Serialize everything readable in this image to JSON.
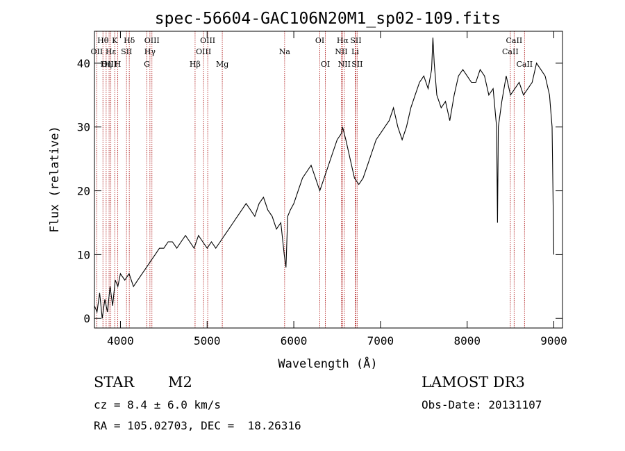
{
  "chart_data": {
    "type": "line",
    "title": "spec-56604-GAC106N20M1_sp02-109.fits",
    "xlabel": "Wavelength (Å)",
    "ylabel": "Flux (relative)",
    "xlim": [
      3700,
      9100
    ],
    "ylim": [
      -1.5,
      45
    ],
    "xticks": [
      4000,
      5000,
      6000,
      7000,
      8000,
      9000
    ],
    "yticks": [
      0,
      10,
      20,
      30,
      40
    ],
    "line_color": "#000000",
    "marker_color": "#b22222",
    "series": [
      {
        "name": "spectrum",
        "x": [
          3700,
          3730,
          3760,
          3790,
          3820,
          3850,
          3880,
          3910,
          3940,
          3970,
          4000,
          4050,
          4100,
          4150,
          4200,
          4250,
          4300,
          4350,
          4400,
          4450,
          4500,
          4550,
          4600,
          4650,
          4700,
          4750,
          4800,
          4850,
          4900,
          4950,
          5000,
          5050,
          5100,
          5150,
          5200,
          5250,
          5300,
          5350,
          5400,
          5450,
          5500,
          5550,
          5600,
          5650,
          5700,
          5750,
          5800,
          5850,
          5890,
          5910,
          5930,
          5960,
          6000,
          6050,
          6100,
          6150,
          6200,
          6250,
          6300,
          6350,
          6400,
          6450,
          6500,
          6550,
          6563,
          6600,
          6650,
          6700,
          6750,
          6800,
          6850,
          6900,
          6950,
          7000,
          7050,
          7100,
          7150,
          7200,
          7250,
          7300,
          7350,
          7400,
          7450,
          7500,
          7550,
          7590,
          7605,
          7620,
          7650,
          7700,
          7750,
          7800,
          7850,
          7900,
          7950,
          8000,
          8050,
          8100,
          8150,
          8200,
          8250,
          8300,
          8340,
          8350,
          8360,
          8400,
          8450,
          8500,
          8550,
          8600,
          8650,
          8700,
          8750,
          8800,
          8850,
          8900,
          8950,
          8980,
          9000
        ],
        "y": [
          2,
          1,
          4,
          0,
          3,
          1,
          5,
          2,
          6,
          5,
          7,
          6,
          7,
          5,
          6,
          7,
          8,
          9,
          10,
          11,
          11,
          12,
          12,
          11,
          12,
          13,
          12,
          11,
          13,
          12,
          11,
          12,
          11,
          12,
          13,
          14,
          15,
          16,
          17,
          18,
          17,
          16,
          18,
          19,
          17,
          16,
          14,
          15,
          10,
          8,
          16,
          17,
          18,
          20,
          22,
          23,
          24,
          22,
          20,
          22,
          24,
          26,
          28,
          29,
          30,
          28,
          25,
          22,
          21,
          22,
          24,
          26,
          28,
          29,
          30,
          31,
          33,
          30,
          28,
          30,
          33,
          35,
          37,
          38,
          36,
          39,
          44,
          40,
          35,
          33,
          34,
          31,
          35,
          38,
          39,
          38,
          37,
          37,
          39,
          38,
          35,
          36,
          30,
          15,
          30,
          34,
          38,
          35,
          36,
          37,
          35,
          36,
          37,
          40,
          39,
          38,
          35,
          30,
          10
        ]
      }
    ],
    "lines": [
      {
        "label": "Hθ",
        "wavelength": 3798,
        "row": 0
      },
      {
        "label": "OII",
        "wavelength": 3727,
        "row": 1
      },
      {
        "label": "OIII",
        "wavelength": 3869,
        "row": 2
      },
      {
        "label": "Hε",
        "wavelength": 3889,
        "row": 1
      },
      {
        "label": "Hη",
        "wavelength": 3835,
        "row": 2
      },
      {
        "label": "K",
        "wavelength": 3934,
        "row": 0
      },
      {
        "label": "SII",
        "wavelength": 4070,
        "row": 1
      },
      {
        "label": "H",
        "wavelength": 3969,
        "row": 2
      },
      {
        "label": "Hδ",
        "wavelength": 4102,
        "row": 0
      },
      {
        "label": "OIII",
        "wavelength": 4363,
        "row": 0
      },
      {
        "label": "Hγ",
        "wavelength": 4340,
        "row": 1
      },
      {
        "label": "G",
        "wavelength": 4305,
        "row": 2
      },
      {
        "label": "Hβ",
        "wavelength": 4861,
        "row": 2
      },
      {
        "label": "OIII",
        "wavelength": 5007,
        "row": 0
      },
      {
        "label": "OIII",
        "wavelength": 4959,
        "row": 1
      },
      {
        "label": "Mg",
        "wavelength": 5175,
        "row": 2
      },
      {
        "label": "Na",
        "wavelength": 5894,
        "row": 1
      },
      {
        "label": "OI",
        "wavelength": 6300,
        "row": 0
      },
      {
        "label": "OI",
        "wavelength": 6364,
        "row": 2
      },
      {
        "label": "Hα",
        "wavelength": 6563,
        "row": 0
      },
      {
        "label": "SII",
        "wavelength": 6716,
        "row": 0
      },
      {
        "label": "NII",
        "wavelength": 6548,
        "row": 1
      },
      {
        "label": "Li",
        "wavelength": 6708,
        "row": 1
      },
      {
        "label": "NII",
        "wavelength": 6583,
        "row": 2
      },
      {
        "label": "SII",
        "wavelength": 6731,
        "row": 2
      },
      {
        "label": "CaII",
        "wavelength": 8542,
        "row": 0
      },
      {
        "label": "CaII",
        "wavelength": 8498,
        "row": 1
      },
      {
        "label": "CaII",
        "wavelength": 8662,
        "row": 2
      }
    ]
  },
  "info": {
    "class": "STAR",
    "subclass": "M2",
    "cz": "cz = 8.4 ± 6.0 km/s",
    "radec": "RA = 105.02703, DEC =  18.26316",
    "survey": "LAMOST DR3",
    "obsdate": "Obs-Date: 20131107"
  }
}
